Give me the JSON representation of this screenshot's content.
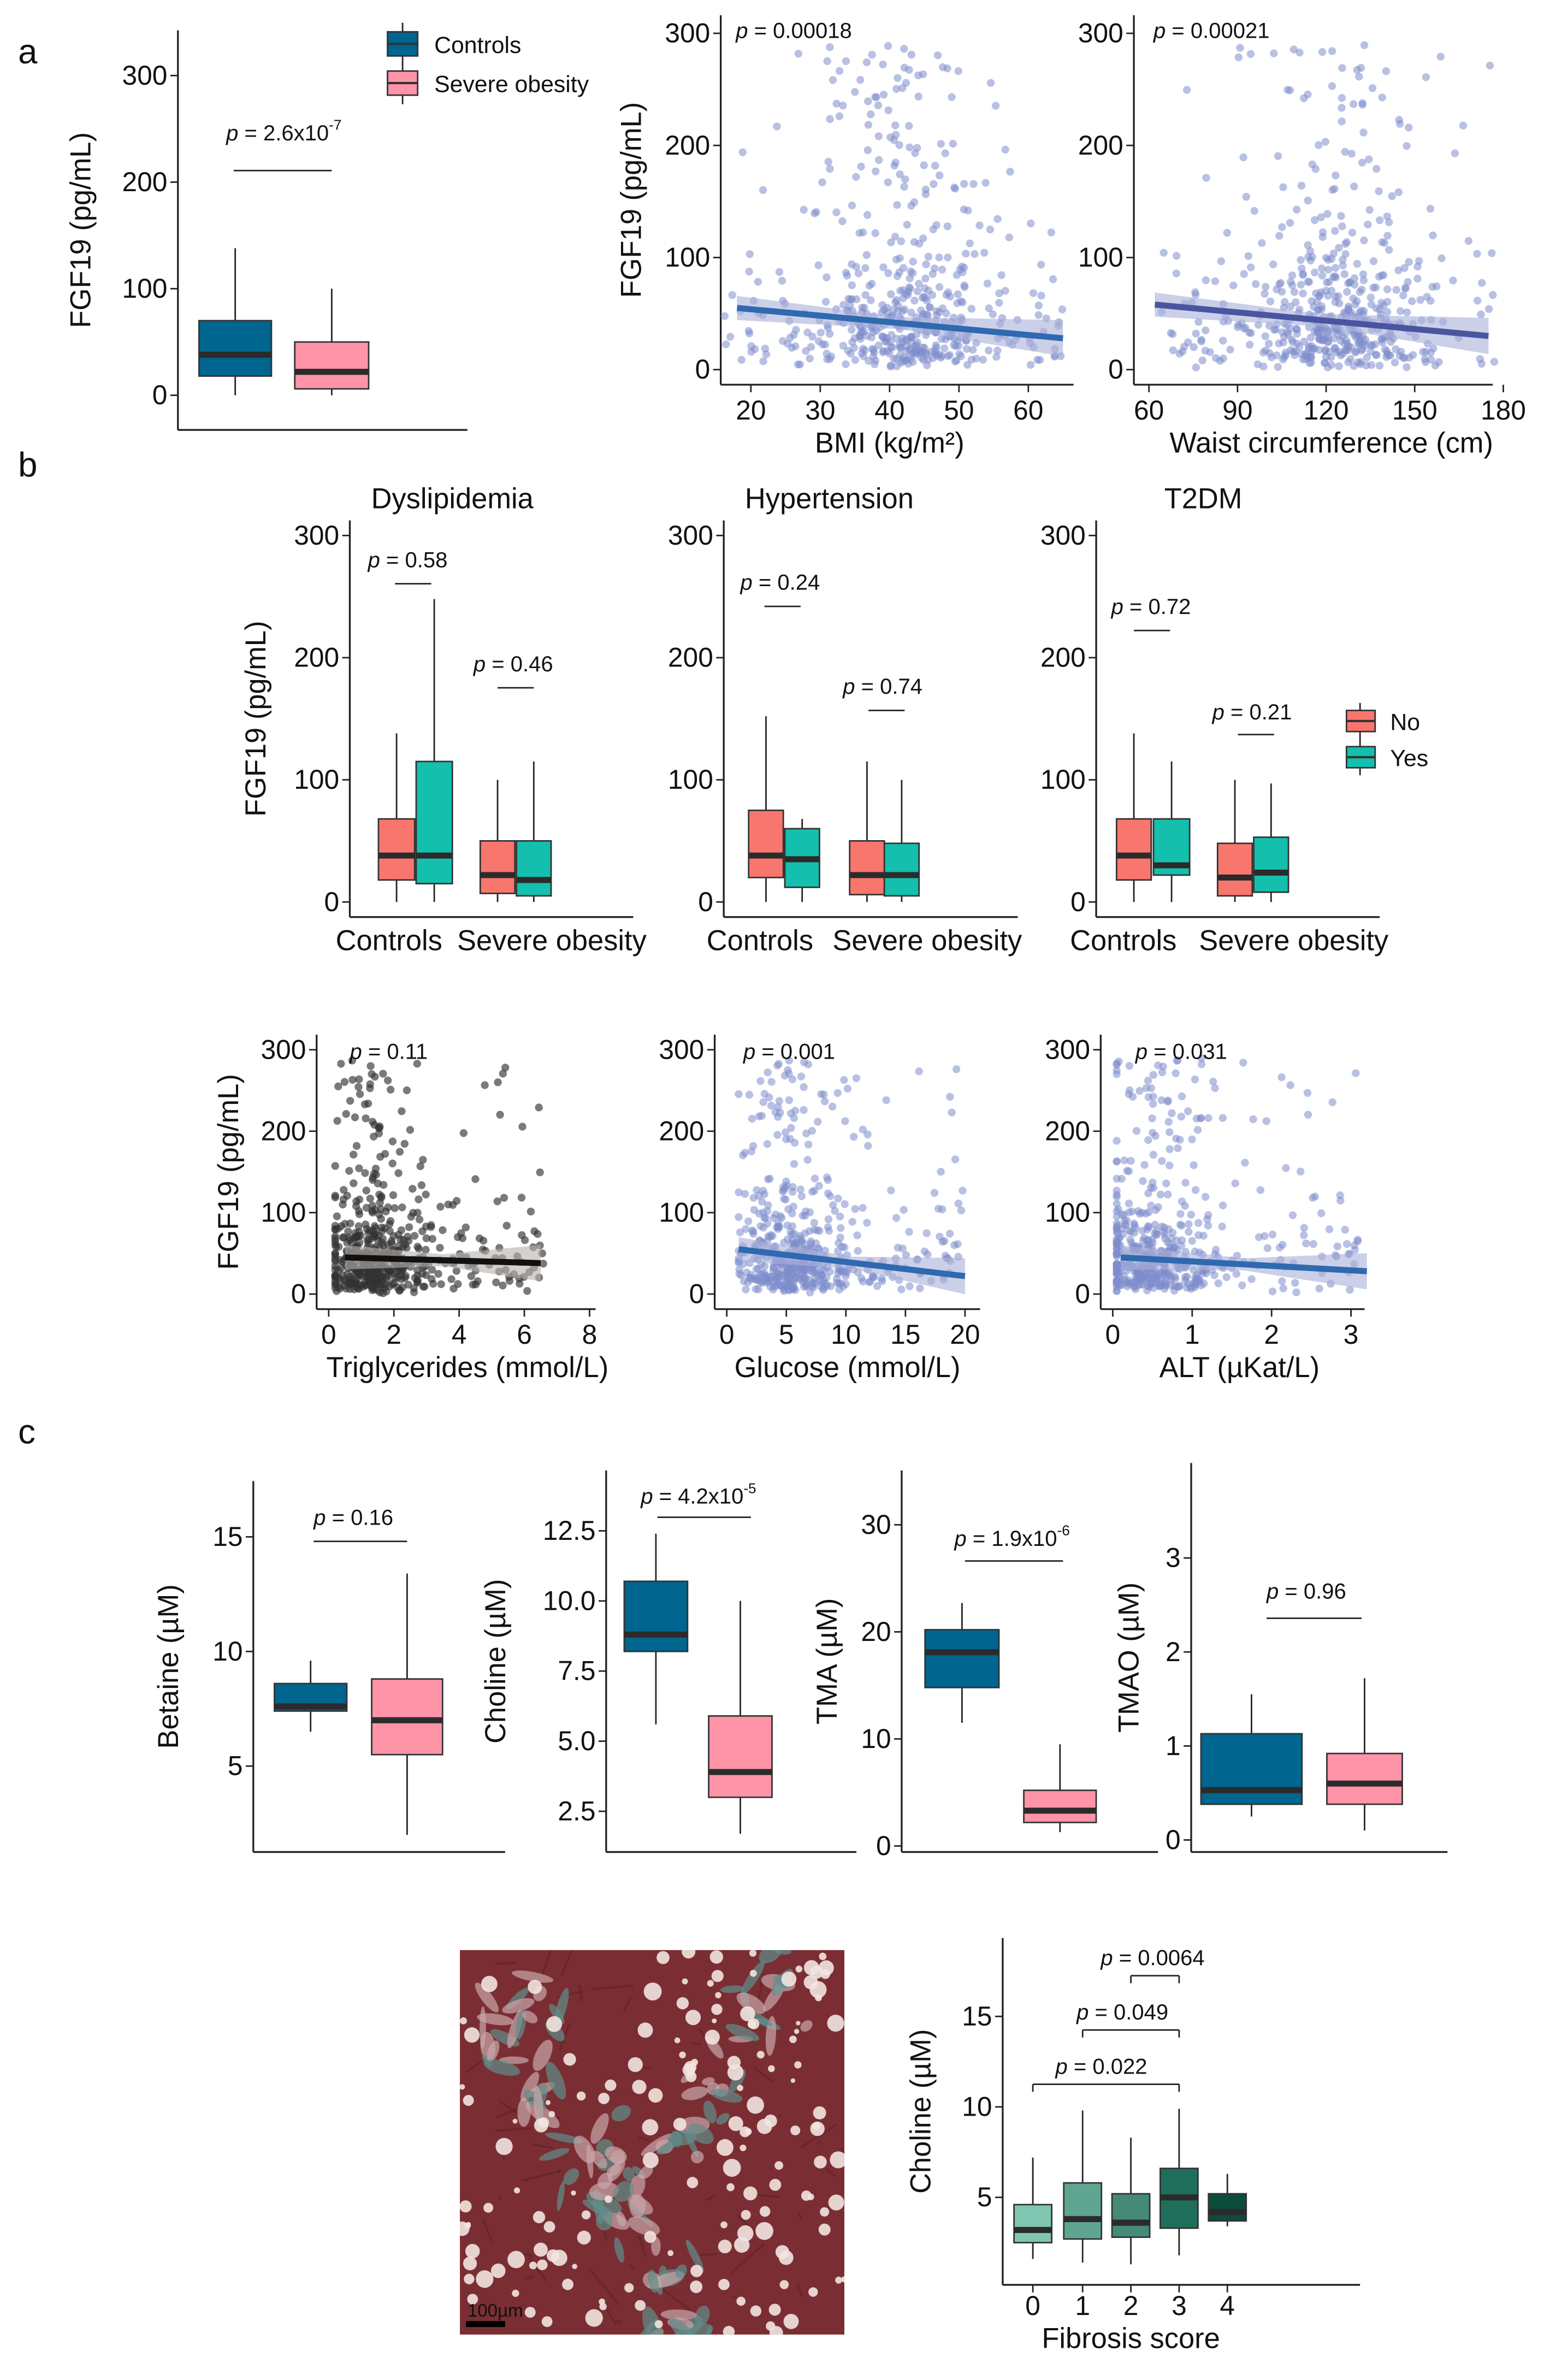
{
  "p_symbol": "p",
  "panel_labels": [
    "a",
    "b",
    "c"
  ],
  "colors": {
    "controls": "#00658f",
    "severe_obesity": "#ff94a8",
    "no": "#f8766d",
    "yes": "#14bfad",
    "scatter_point": "#7d8dcc",
    "reg_line": "#2f69b0",
    "median": "#2b2b2b"
  },
  "legend_a": [
    "Controls",
    "Severe obesity"
  ],
  "legend_b": [
    "No",
    "Yes"
  ],
  "histology": {
    "scale_bar": "100µm"
  },
  "chart_data": [
    {
      "id": "a_box",
      "type": "box",
      "ylabel": "FGF19 (pg/mL)",
      "yticks": [
        "0",
        "100",
        "200",
        "300"
      ],
      "ytick_values": [
        0,
        100,
        200,
        300
      ],
      "groups": [
        {
          "name": "Controls",
          "color": "#00658f",
          "min": 0,
          "q1": 18,
          "median": 38,
          "q3": 70,
          "max": 138
        },
        {
          "name": "Severe obesity",
          "color": "#ff94a8",
          "min": 0,
          "q1": 6,
          "median": 22,
          "q3": 50,
          "max": 100
        }
      ],
      "comparisons": [
        {
          "p": " = 2.6x10",
          "exp": "-7"
        }
      ]
    },
    {
      "id": "a_sc1",
      "type": "scatter",
      "ylabel": "FGF19 (pg/mL)",
      "xlabel": "BMI (kg/m²)",
      "yticks": [
        "0",
        "100",
        "200",
        "300"
      ],
      "ytick_values": [
        0,
        100,
        200,
        300
      ],
      "xticks": [
        "20",
        "30",
        "40",
        "50",
        "60"
      ],
      "xtick_values": [
        20,
        30,
        40,
        50,
        60
      ],
      "xrange": [
        16,
        66
      ],
      "mode": 42,
      "fit": {
        "x": [
          18,
          65
        ],
        "y": [
          55,
          28
        ]
      },
      "p": " = 0.00018",
      "point_color": "#7d8dcc",
      "line_color": "#2f69b0"
    },
    {
      "id": "a_sc2",
      "type": "scatter",
      "xlabel": "Waist circumference (cm)",
      "yticks": [
        "0",
        "100",
        "200",
        "300"
      ],
      "ytick_values": [
        0,
        100,
        200,
        300
      ],
      "xticks": [
        "60",
        "90",
        "120",
        "150",
        "180"
      ],
      "xtick_values": [
        60,
        90,
        120,
        150,
        180
      ],
      "xrange": [
        62,
        177
      ],
      "mode": 125,
      "fit": {
        "x": [
          62,
          175
        ],
        "y": [
          58,
          30
        ]
      },
      "p": " = 0.00021",
      "point_color": "#7d8dcc",
      "line_color": "#4a55a0"
    },
    {
      "id": "b_box1",
      "type": "box",
      "title": "Dyslipidemia",
      "ylabel": "FGF19 (pg/mL)",
      "yticks": [
        "0",
        "100",
        "200",
        "300"
      ],
      "ytick_values": [
        0,
        100,
        200,
        300
      ],
      "xcats": [
        "Controls",
        "Severe obesity"
      ],
      "groups": [
        {
          "name": "Controls No",
          "color": "#f8766d",
          "min": 0,
          "q1": 18,
          "median": 38,
          "q3": 68,
          "max": 138
        },
        {
          "name": "Controls Yes",
          "color": "#14bfad",
          "min": 0,
          "q1": 15,
          "median": 38,
          "q3": 115,
          "max": 248
        },
        {
          "name": "Severe obesity No",
          "color": "#f8766d",
          "min": 0,
          "q1": 7,
          "median": 22,
          "q3": 50,
          "max": 100
        },
        {
          "name": "Severe obesity Yes",
          "color": "#14bfad",
          "min": 0,
          "q1": 5,
          "median": 18,
          "q3": 50,
          "max": 115
        }
      ],
      "comparisons": [
        {
          "p": " = 0.58"
        },
        {
          "p": " = 0.46"
        }
      ]
    },
    {
      "id": "b_box2",
      "type": "box",
      "title": "Hypertension",
      "yticks": [
        "0",
        "100",
        "200",
        "300"
      ],
      "ytick_values": [
        0,
        100,
        200,
        300
      ],
      "xcats": [
        "Controls",
        "Severe obesity"
      ],
      "groups": [
        {
          "name": "Controls No",
          "color": "#f8766d",
          "min": 0,
          "q1": 20,
          "median": 38,
          "q3": 75,
          "max": 152
        },
        {
          "name": "Controls Yes",
          "color": "#14bfad",
          "min": 0,
          "q1": 12,
          "median": 35,
          "q3": 60,
          "max": 68
        },
        {
          "name": "Severe obesity No",
          "color": "#f8766d",
          "min": 0,
          "q1": 6,
          "median": 22,
          "q3": 50,
          "max": 115
        },
        {
          "name": "Severe obesity Yes",
          "color": "#14bfad",
          "min": 0,
          "q1": 5,
          "median": 22,
          "q3": 48,
          "max": 100
        }
      ],
      "comparisons": [
        {
          "p": " = 0.24"
        },
        {
          "p": " = 0.74"
        }
      ]
    },
    {
      "id": "b_box3",
      "type": "box",
      "title": "T2DM",
      "yticks": [
        "0",
        "100",
        "200",
        "300"
      ],
      "ytick_values": [
        0,
        100,
        200,
        300
      ],
      "xcats": [
        "Controls",
        "Severe obesity"
      ],
      "groups": [
        {
          "name": "Controls No",
          "color": "#f8766d",
          "min": 0,
          "q1": 18,
          "median": 38,
          "q3": 68,
          "max": 138
        },
        {
          "name": "Controls Yes",
          "color": "#14bfad",
          "min": 0,
          "q1": 22,
          "median": 30,
          "q3": 68,
          "max": 115
        },
        {
          "name": "Severe obesity No",
          "color": "#f8766d",
          "min": 0,
          "q1": 5,
          "median": 20,
          "q3": 48,
          "max": 100
        },
        {
          "name": "Severe obesity Yes",
          "color": "#14bfad",
          "min": 0,
          "q1": 8,
          "median": 24,
          "q3": 53,
          "max": 97
        }
      ],
      "comparisons": [
        {
          "p": " = 0.72"
        },
        {
          "p": " = 0.21"
        }
      ]
    },
    {
      "id": "b_sc1",
      "type": "scatter",
      "ylabel": "FGF19 (pg/mL)",
      "xlabel": "Triglycerides (mmol/L)",
      "yticks": [
        "0",
        "100",
        "200",
        "300"
      ],
      "ytick_values": [
        0,
        100,
        200,
        300
      ],
      "xticks": [
        "0",
        "2",
        "4",
        "6",
        "8"
      ],
      "xtick_values": [
        0,
        2,
        4,
        6,
        8
      ],
      "xrange": [
        0.2,
        6.6
      ],
      "mode": 1.3,
      "fit": {
        "x": [
          0.5,
          6.5
        ],
        "y": [
          45,
          38
        ]
      },
      "p": " = 0.11",
      "point_color": "#333333",
      "line_color": "#111111"
    },
    {
      "id": "b_sc2",
      "type": "scatter",
      "xlabel": "Glucose (mmol/L)",
      "yticks": [
        "0",
        "100",
        "200",
        "300"
      ],
      "ytick_values": [
        0,
        100,
        200,
        300
      ],
      "xticks": [
        "0",
        "5",
        "10",
        "15",
        "20"
      ],
      "xtick_values": [
        0,
        5,
        10,
        15,
        20
      ],
      "xrange": [
        1,
        20
      ],
      "mode": 5.5,
      "fit": {
        "x": [
          1,
          20
        ],
        "y": [
          55,
          22
        ]
      },
      "p": " = 0.001",
      "point_color": "#7d8dcc",
      "line_color": "#2f69b0"
    },
    {
      "id": "b_sc3",
      "type": "scatter",
      "xlabel": "ALT (µKat/L)",
      "yticks": [
        "0",
        "100",
        "200",
        "300"
      ],
      "ytick_values": [
        0,
        100,
        200,
        300
      ],
      "xticks": [
        "0",
        "1",
        "2",
        "3"
      ],
      "xtick_values": [
        0,
        1,
        2,
        3
      ],
      "xrange": [
        0.05,
        3.1
      ],
      "mode": 0.5,
      "fit": {
        "x": [
          0.1,
          3.2
        ],
        "y": [
          45,
          28
        ]
      },
      "p": " = 0.031",
      "point_color": "#7d8dcc",
      "line_color": "#2f69b0"
    },
    {
      "id": "c_betaine",
      "type": "box",
      "ylabel": "Betaine (µM)",
      "yticks": [
        "5",
        "10",
        "15"
      ],
      "ytick_values": [
        5,
        10,
        15
      ],
      "groups": [
        {
          "name": "Controls",
          "color": "#00658f",
          "min": 6.5,
          "q1": 7.4,
          "median": 7.6,
          "q3": 8.6,
          "max": 9.6
        },
        {
          "name": "Severe obesity",
          "color": "#ff94a8",
          "min": 2.0,
          "q1": 5.5,
          "median": 7.0,
          "q3": 8.8,
          "max": 13.4
        }
      ],
      "comparisons": [
        {
          "p": " = 0.16"
        }
      ]
    },
    {
      "id": "c_choline",
      "type": "box",
      "ylabel": "Choline (µM)",
      "yticks": [
        "2.5",
        "5.0",
        "7.5",
        "10.0",
        "12.5"
      ],
      "ytick_values": [
        2.5,
        5,
        7.5,
        10,
        12.5
      ],
      "groups": [
        {
          "name": "Controls",
          "color": "#00658f",
          "min": 5.6,
          "q1": 8.2,
          "median": 8.8,
          "q3": 10.7,
          "max": 12.4
        },
        {
          "name": "Severe obesity",
          "color": "#ff94a8",
          "min": 1.7,
          "q1": 3.0,
          "median": 3.9,
          "q3": 5.9,
          "max": 10.0
        }
      ],
      "comparisons": [
        {
          "p": " = 4.2x10",
          "exp": "-5"
        }
      ]
    },
    {
      "id": "c_tma",
      "type": "box",
      "ylabel": "TMA (µM)",
      "yticks": [
        "0",
        "10",
        "20",
        "30"
      ],
      "ytick_values": [
        0,
        10,
        20,
        30
      ],
      "groups": [
        {
          "name": "Controls",
          "color": "#00658f",
          "min": 11.5,
          "q1": 14.8,
          "median": 18.1,
          "q3": 20.2,
          "max": 22.7
        },
        {
          "name": "Severe obesity",
          "color": "#ff94a8",
          "min": 1.3,
          "q1": 2.2,
          "median": 3.3,
          "q3": 5.2,
          "max": 9.5
        }
      ],
      "comparisons": [
        {
          "p": " = 1.9x10",
          "exp": "-6"
        }
      ]
    },
    {
      "id": "c_tmao",
      "type": "box",
      "ylabel": "TMAO (µM)",
      "yticks": [
        "0",
        "1",
        "2",
        "3"
      ],
      "ytick_values": [
        0,
        1,
        2,
        3
      ],
      "groups": [
        {
          "name": "Controls",
          "color": "#00658f",
          "min": 0.25,
          "q1": 0.38,
          "median": 0.53,
          "q3": 1.13,
          "max": 1.55
        },
        {
          "name": "Severe obesity",
          "color": "#ff94a8",
          "min": 0.1,
          "q1": 0.38,
          "median": 0.6,
          "q3": 0.92,
          "max": 1.72
        }
      ],
      "comparisons": [
        {
          "p": " = 0.96"
        }
      ]
    },
    {
      "id": "c_fibrosis",
      "type": "box",
      "ylabel": "Choline (µM)",
      "xlabel": "Fibrosis score",
      "yticks": [
        "5",
        "10",
        "15"
      ],
      "ytick_values": [
        5,
        10,
        15
      ],
      "xcats": [
        "0",
        "1",
        "2",
        "3",
        "4"
      ],
      "groups": [
        {
          "name": "0",
          "color": "#7fc6b0",
          "min": 1.6,
          "q1": 2.5,
          "median": 3.2,
          "q3": 4.6,
          "max": 7.2
        },
        {
          "name": "1",
          "color": "#5fa592",
          "min": 1.4,
          "q1": 2.7,
          "median": 3.8,
          "q3": 5.8,
          "max": 9.8
        },
        {
          "name": "2",
          "color": "#448a77",
          "min": 1.3,
          "q1": 2.8,
          "median": 3.6,
          "q3": 5.2,
          "max": 8.3
        },
        {
          "name": "3",
          "color": "#1f6e5b",
          "min": 1.8,
          "q1": 3.3,
          "median": 5.0,
          "q3": 6.6,
          "max": 9.9
        },
        {
          "name": "4",
          "color": "#0a4d3d",
          "min": 3.4,
          "q1": 3.7,
          "median": 4.2,
          "q3": 5.2,
          "max": 6.3
        }
      ],
      "comparisons": [
        {
          "p": " = 0.022",
          "groups": [
            "0",
            "3"
          ]
        },
        {
          "p": " = 0.049",
          "groups": [
            "1",
            "3"
          ]
        },
        {
          "p": " = 0.0064",
          "groups": [
            "2",
            "3"
          ]
        }
      ]
    }
  ]
}
